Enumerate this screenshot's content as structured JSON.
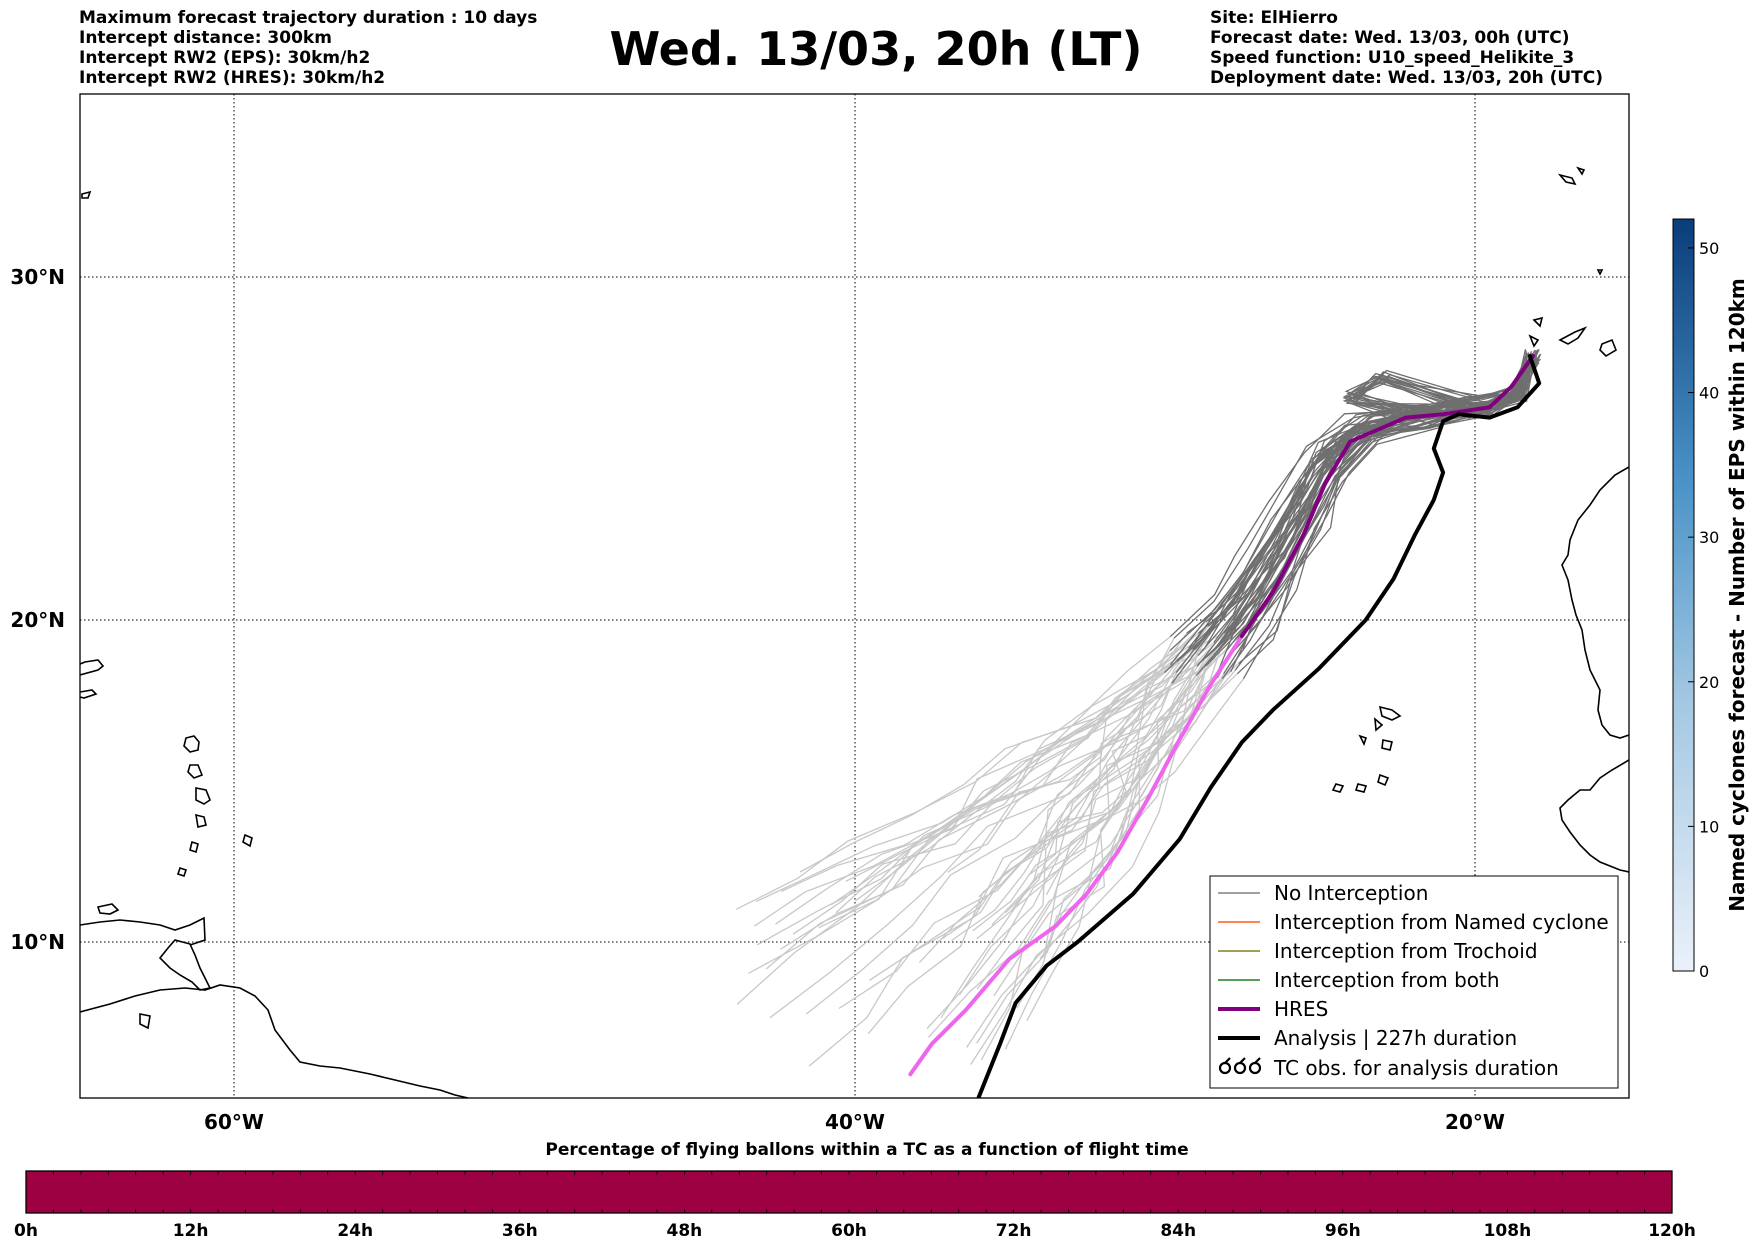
{
  "header": {
    "left_lines": [
      "Maximum forecast trajectory duration : 10 days",
      "Intercept distance: 300km",
      "Intercept RW2 (EPS):  30km/h2",
      "Intercept RW2 (HRES): 30km/h2"
    ],
    "title": "Wed. 13/03, 20h (LT)",
    "right_lines": [
      "Site: ElHierro",
      "Forecast date: Wed. 13/03, 00h (UTC)",
      "Speed function: U10_speed_Helikite_3",
      "Deployment date: Wed. 13/03, 20h (UTC)"
    ]
  },
  "map": {
    "lat_labels": [
      "30°N",
      "20°N",
      "10°N"
    ],
    "lon_labels": [
      "60°W",
      "40°W",
      "20°W"
    ],
    "lon_range": [
      -65,
      -15
    ],
    "lat_range": [
      5.4,
      34.7
    ],
    "gridlines": true
  },
  "legend": {
    "position": "lower-right",
    "items": [
      {
        "label": "No Interception",
        "color": "#808080",
        "style": "thin"
      },
      {
        "label": "Interception from Named cyclone",
        "color": "#ff5a1a",
        "style": "thin"
      },
      {
        "label": "Interception from Trochoid",
        "color": "#808020",
        "style": "thin"
      },
      {
        "label": "Interception from both",
        "color": "#208020",
        "style": "thin"
      },
      {
        "label": "HRES",
        "color": "#800080",
        "style": "thick"
      },
      {
        "label": "Analysis | 227h duration",
        "color": "#000000",
        "style": "thick"
      },
      {
        "label": "TC obs. for analysis duration",
        "color": "#000000",
        "style": "cyclone-icon"
      }
    ]
  },
  "colorbar_right": {
    "label": "Named cyclones forecast - Number of EPS within 120km",
    "ticks": [
      "0",
      "10",
      "20",
      "30",
      "40",
      "50"
    ],
    "range": [
      0,
      52
    ],
    "color_low": "#e6eef8",
    "color_high": "#08306b"
  },
  "colorbar_bottom": {
    "title": "Percentage of flying ballons within a TC as a function of flight time",
    "ticks": [
      "0h",
      "12h",
      "24h",
      "36h",
      "48h",
      "60h",
      "72h",
      "84h",
      "96h",
      "108h",
      "120h"
    ],
    "fill_color": "#9e0142"
  },
  "trajectories": {
    "hres": [
      [
        -38.2,
        6.1
      ],
      [
        -37.5,
        7.0
      ],
      [
        -36.4,
        8.0
      ],
      [
        -35.0,
        9.5
      ],
      [
        -33.5,
        10.5
      ],
      [
        -32.5,
        11.5
      ],
      [
        -31.5,
        12.8
      ],
      [
        -30.5,
        14.5
      ],
      [
        -29.5,
        16.3
      ],
      [
        -28.5,
        18.0
      ],
      [
        -27.5,
        19.5
      ],
      [
        -26.5,
        20.8
      ],
      [
        -25.5,
        22.5
      ],
      [
        -24.8,
        24.0
      ],
      [
        -24.0,
        25.2
      ],
      [
        -22.2,
        25.9
      ],
      [
        -21.0,
        26.0
      ],
      [
        -19.5,
        26.2
      ],
      [
        -18.8,
        26.8
      ],
      [
        -18.1,
        27.7
      ]
    ],
    "analysis": [
      [
        -36.0,
        5.4
      ],
      [
        -35.3,
        7.0
      ],
      [
        -34.8,
        8.2
      ],
      [
        -33.8,
        9.3
      ],
      [
        -32.8,
        10.0
      ],
      [
        -31.0,
        11.5
      ],
      [
        -29.5,
        13.2
      ],
      [
        -28.5,
        14.8
      ],
      [
        -27.5,
        16.2
      ],
      [
        -26.5,
        17.2
      ],
      [
        -25.0,
        18.5
      ],
      [
        -23.5,
        20.0
      ],
      [
        -22.6,
        21.2
      ],
      [
        -21.9,
        22.5
      ],
      [
        -21.3,
        23.5
      ],
      [
        -21.0,
        24.3
      ],
      [
        -21.3,
        25.0
      ],
      [
        -21.0,
        25.8
      ],
      [
        -20.5,
        26.0
      ],
      [
        -19.5,
        25.9
      ],
      [
        -18.6,
        26.2
      ],
      [
        -17.9,
        26.9
      ],
      [
        -18.2,
        27.7
      ]
    ]
  }
}
